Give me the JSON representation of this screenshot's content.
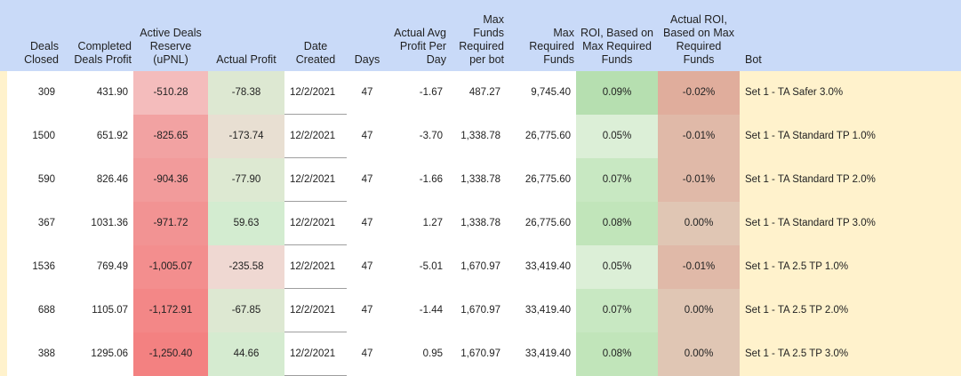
{
  "headers": {
    "deals_closed": "Deals Closed",
    "completed_profit": "Completed Deals Profit",
    "active_reserve": "Active Deals Reserve (uPNL)",
    "actual_profit": "Actual Profit",
    "date_created": "Date Created",
    "days": "Days",
    "avg_profit": "Actual Avg Profit Per Day",
    "max_funds_bot": "Max Funds Required per bot",
    "max_funds": "Max Required Funds",
    "roi_max": "ROI, Based on Max Required Funds",
    "actual_roi": "Actual ROI, Based on Max Required Funds",
    "bot": "Bot"
  },
  "rows": [
    {
      "deals_closed": "309",
      "completed_profit": "431.90",
      "active_reserve": "-510.28",
      "actual_profit": "-78.38",
      "date_created": "12/2/2021",
      "days": "47",
      "avg_profit": "-1.67",
      "max_funds_bot": "487.27",
      "max_funds": "9,745.40",
      "roi_max": "0.09%",
      "actual_roi": "-0.02%",
      "bot": "Set 1 - TA Safer 3.0%"
    },
    {
      "deals_closed": "1500",
      "completed_profit": "651.92",
      "active_reserve": "-825.65",
      "actual_profit": "-173.74",
      "date_created": "12/2/2021",
      "days": "47",
      "avg_profit": "-3.70",
      "max_funds_bot": "1,338.78",
      "max_funds": "26,775.60",
      "roi_max": "0.05%",
      "actual_roi": "-0.01%",
      "bot": "Set 1 - TA Standard TP 1.0%"
    },
    {
      "deals_closed": "590",
      "completed_profit": "826.46",
      "active_reserve": "-904.36",
      "actual_profit": "-77.90",
      "date_created": "12/2/2021",
      "days": "47",
      "avg_profit": "-1.66",
      "max_funds_bot": "1,338.78",
      "max_funds": "26,775.60",
      "roi_max": "0.07%",
      "actual_roi": "-0.01%",
      "bot": "Set 1 - TA Standard TP 2.0%"
    },
    {
      "deals_closed": "367",
      "completed_profit": "1031.36",
      "active_reserve": "-971.72",
      "actual_profit": "59.63",
      "date_created": "12/2/2021",
      "days": "47",
      "avg_profit": "1.27",
      "max_funds_bot": "1,338.78",
      "max_funds": "26,775.60",
      "roi_max": "0.08%",
      "actual_roi": "0.00%",
      "bot": "Set 1 - TA Standard TP 3.0%"
    },
    {
      "deals_closed": "1536",
      "completed_profit": "769.49",
      "active_reserve": "-1,005.07",
      "actual_profit": "-235.58",
      "date_created": "12/2/2021",
      "days": "47",
      "avg_profit": "-5.01",
      "max_funds_bot": "1,670.97",
      "max_funds": "33,419.40",
      "roi_max": "0.05%",
      "actual_roi": "-0.01%",
      "bot": "Set 1 - TA 2.5 TP 1.0%"
    },
    {
      "deals_closed": "688",
      "completed_profit": "1105.07",
      "active_reserve": "-1,172.91",
      "actual_profit": "-67.85",
      "date_created": "12/2/2021",
      "days": "47",
      "avg_profit": "-1.44",
      "max_funds_bot": "1,670.97",
      "max_funds": "33,419.40",
      "roi_max": "0.07%",
      "actual_roi": "0.00%",
      "bot": "Set 1 - TA 2.5 TP 2.0%"
    },
    {
      "deals_closed": "388",
      "completed_profit": "1295.06",
      "active_reserve": "-1,250.40",
      "actual_profit": "44.66",
      "date_created": "12/2/2021",
      "days": "47",
      "avg_profit": "0.95",
      "max_funds_bot": "1,670.97",
      "max_funds": "33,419.40",
      "roi_max": "0.08%",
      "actual_roi": "0.00%",
      "bot": "Set 1 - TA 2.5 TP 3.0%"
    }
  ],
  "colors": {
    "header_bg": "#c9daf8",
    "bot_bg": "#fff2cc",
    "reserve": [
      "#f4bcbc",
      "#f2a2a2",
      "#f29b9b",
      "#f29393",
      "#f38e8e",
      "#f38787",
      "#f38181"
    ],
    "actual_profit": [
      "#dde8d2",
      "#e8dfd2",
      "#dde9d2",
      "#d3ecd0",
      "#efd8d2",
      "#dde8d2",
      "#d5ebd0"
    ],
    "roi_max": [
      "#b6dfb0",
      "#dcefd7",
      "#c8e8c2",
      "#c1e5ba",
      "#dcefd7",
      "#c8e8c2",
      "#c1e5ba"
    ],
    "actual_roi": [
      "#e0ad9c",
      "#e0b9a8",
      "#e0b9a8",
      "#e0c6b4",
      "#e0b9a8",
      "#e0c6b4",
      "#e0c6b4"
    ]
  }
}
